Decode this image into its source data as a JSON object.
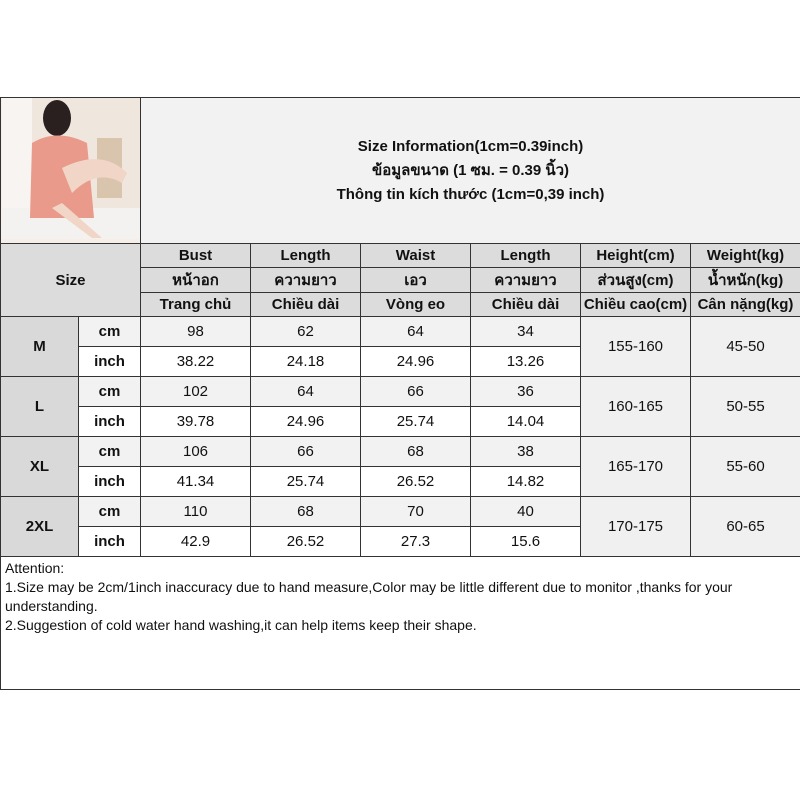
{
  "title": {
    "line1": "Size Information(1cm=0.39inch)",
    "line2": "ข้อมูลขนาด (1 ซม. = 0.39 นิ้ว)",
    "line3": "Thông tin kích thước (1cm=0,39 inch)"
  },
  "size_label": "Size",
  "columns": [
    {
      "en": "Bust",
      "th": "หน้าอก",
      "vi": "Trang chủ"
    },
    {
      "en": "Length",
      "th": "ความยาว",
      "vi": "Chiều dài"
    },
    {
      "en": "Waist",
      "th": "เอว",
      "vi": "Vòng eo"
    },
    {
      "en": "Length",
      "th": "ความยาว",
      "vi": "Chiều dài"
    },
    {
      "en": "Height(cm)",
      "th": "ส่วนสูง(cm)",
      "vi": "Chiều cao(cm)"
    },
    {
      "en": "Weight(kg)",
      "th": "น้ำหนัก(kg)",
      "vi": "Cân nặng(kg)"
    }
  ],
  "units": {
    "cm": "cm",
    "inch": "inch"
  },
  "rows": [
    {
      "size": "M",
      "cm": [
        "98",
        "62",
        "64",
        "34"
      ],
      "inch": [
        "38.22",
        "24.18",
        "24.96",
        "13.26"
      ],
      "height": "155-160",
      "weight": "45-50"
    },
    {
      "size": "L",
      "cm": [
        "102",
        "64",
        "66",
        "36"
      ],
      "inch": [
        "39.78",
        "24.96",
        "25.74",
        "14.04"
      ],
      "height": "160-165",
      "weight": "50-55"
    },
    {
      "size": "XL",
      "cm": [
        "106",
        "66",
        "68",
        "38"
      ],
      "inch": [
        "41.34",
        "25.74",
        "26.52",
        "14.82"
      ],
      "height": "165-170",
      "weight": "55-60"
    },
    {
      "size": "2XL",
      "cm": [
        "110",
        "68",
        "70",
        "40"
      ],
      "inch": [
        "42.9",
        "26.52",
        "27.3",
        "15.6"
      ],
      "height": "170-175",
      "weight": "60-65"
    }
  ],
  "attention": {
    "heading": "Attention:",
    "note1": "1.Size may be 2cm/1inch inaccuracy due to hand measure,Color may be little different due to monitor ,thanks for your understanding.",
    "note2": "2.Suggestion of cold water hand washing,it can help items keep their shape."
  }
}
